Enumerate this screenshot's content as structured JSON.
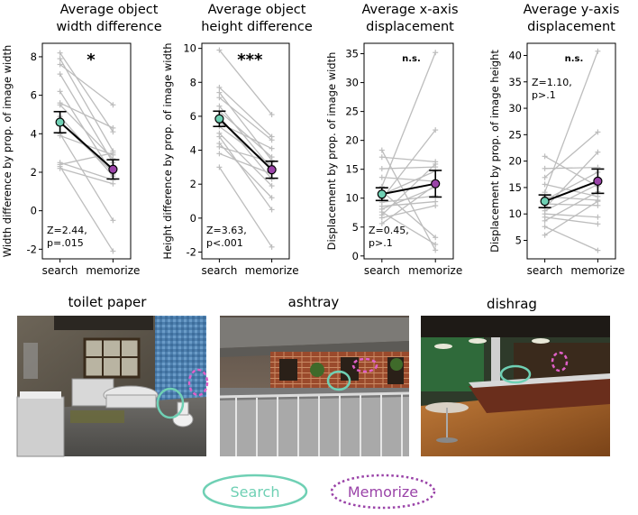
{
  "chart_data": [
    {
      "type": "scatter",
      "title": [
        "Average object",
        "width difference"
      ],
      "ylabel": "Width difference by prop. of image width",
      "categories": [
        "search",
        "memorize"
      ],
      "ylim": [
        -2.5,
        8.7
      ],
      "yticks": [
        -2,
        0,
        2,
        4,
        6,
        8
      ],
      "significance": "*",
      "stat_text": [
        "Z=2.44,",
        "p=.015"
      ],
      "means": [
        4.6,
        2.15
      ],
      "errors": [
        0.55,
        0.5
      ],
      "pairs": [
        [
          8.2,
          4.1
        ],
        [
          7.9,
          3.1
        ],
        [
          7.6,
          5.5
        ],
        [
          7.1,
          2.5
        ],
        [
          6.2,
          1.9
        ],
        [
          5.6,
          4.3
        ],
        [
          5.5,
          2.7
        ],
        [
          4.9,
          1.8
        ],
        [
          4.6,
          2.0
        ],
        [
          4.0,
          -0.5
        ],
        [
          3.9,
          2.9
        ],
        [
          2.5,
          1.6
        ],
        [
          2.4,
          3.0
        ],
        [
          2.2,
          1.4
        ],
        [
          2.3,
          -2.1
        ]
      ]
    },
    {
      "type": "scatter",
      "title": [
        "Average object",
        "height difference"
      ],
      "ylabel": "Height difference by prop. of image width",
      "categories": [
        "search",
        "memorize"
      ],
      "ylim": [
        -2.4,
        10.3
      ],
      "yticks": [
        -2,
        0,
        2,
        4,
        6,
        8,
        10
      ],
      "significance": "***",
      "stat_text": [
        "Z=3.63,",
        "p<.001"
      ],
      "means": [
        5.85,
        2.85
      ],
      "errors": [
        0.45,
        0.5
      ],
      "pairs": [
        [
          9.9,
          6.1
        ],
        [
          7.7,
          4.8
        ],
        [
          7.4,
          3.4
        ],
        [
          7.1,
          4.6
        ],
        [
          6.6,
          2.9
        ],
        [
          6.3,
          3.6
        ],
        [
          6.0,
          2.3
        ],
        [
          5.6,
          4.1
        ],
        [
          5.4,
          3.1
        ],
        [
          5.0,
          1.9
        ],
        [
          4.8,
          0.5
        ],
        [
          4.4,
          1.2
        ],
        [
          4.2,
          3.3
        ],
        [
          3.8,
          2.6
        ],
        [
          3.0,
          -1.7
        ]
      ]
    },
    {
      "type": "scatter",
      "title": [
        "Average x-axis",
        "displacement"
      ],
      "ylabel": "Displacement by prop. of image width",
      "categories": [
        "search",
        "memorize"
      ],
      "ylim": [
        -0.5,
        36.8
      ],
      "yticks": [
        0,
        5,
        10,
        15,
        20,
        25,
        30,
        35
      ],
      "significance": "n.s.",
      "stat_text": [
        "Z=0.45,",
        "p>.1"
      ],
      "means": [
        10.7,
        12.5
      ],
      "errors": [
        1.1,
        2.3
      ],
      "pairs": [
        [
          18.3,
          1.0
        ],
        [
          17.1,
          16.3
        ],
        [
          15.1,
          15.4
        ],
        [
          13.6,
          12.9
        ],
        [
          12.0,
          35.2
        ],
        [
          11.2,
          3.2
        ],
        [
          10.6,
          14.7
        ],
        [
          9.9,
          21.8
        ],
        [
          9.3,
          10.4
        ],
        [
          8.6,
          9.4
        ],
        [
          8.1,
          11.9
        ],
        [
          7.6,
          2.0
        ],
        [
          7.1,
          15.9
        ],
        [
          6.6,
          8.7
        ],
        [
          5.6,
          12.3
        ]
      ]
    },
    {
      "type": "scatter",
      "title": [
        "Average y-axis",
        "displacement"
      ],
      "ylabel": "Displacement by prop. of image height",
      "categories": [
        "search",
        "memorize"
      ],
      "ylim": [
        1.5,
        42.3
      ],
      "yticks": [
        5,
        10,
        15,
        20,
        25,
        30,
        35,
        40
      ],
      "significance": "n.s.",
      "stat_text": [
        "Z=1.10,",
        "p>.1"
      ],
      "means": [
        12.4,
        16.2
      ],
      "errors": [
        1.2,
        2.3
      ],
      "pairs": [
        [
          20.9,
          15.2
        ],
        [
          18.6,
          18.8
        ],
        [
          16.9,
          25.5
        ],
        [
          15.6,
          13.3
        ],
        [
          14.1,
          40.8
        ],
        [
          13.3,
          12.6
        ],
        [
          12.6,
          17.9
        ],
        [
          11.9,
          11.6
        ],
        [
          11.1,
          21.7
        ],
        [
          10.6,
          15.6
        ],
        [
          10.0,
          9.4
        ],
        [
          9.4,
          8.1
        ],
        [
          8.7,
          14.2
        ],
        [
          7.6,
          3.1
        ],
        [
          6.0,
          12.4
        ]
      ]
    }
  ],
  "scenes": {
    "titles": [
      "toilet paper",
      "ashtray",
      "dishrag"
    ]
  },
  "legend": {
    "search_label": "Search",
    "memorize_label": "Memorize"
  },
  "colors": {
    "search": "#6fd0b4",
    "memorize": "#9a43a8",
    "line_gray": "#bdbdbd",
    "mean_line": "#000000"
  }
}
